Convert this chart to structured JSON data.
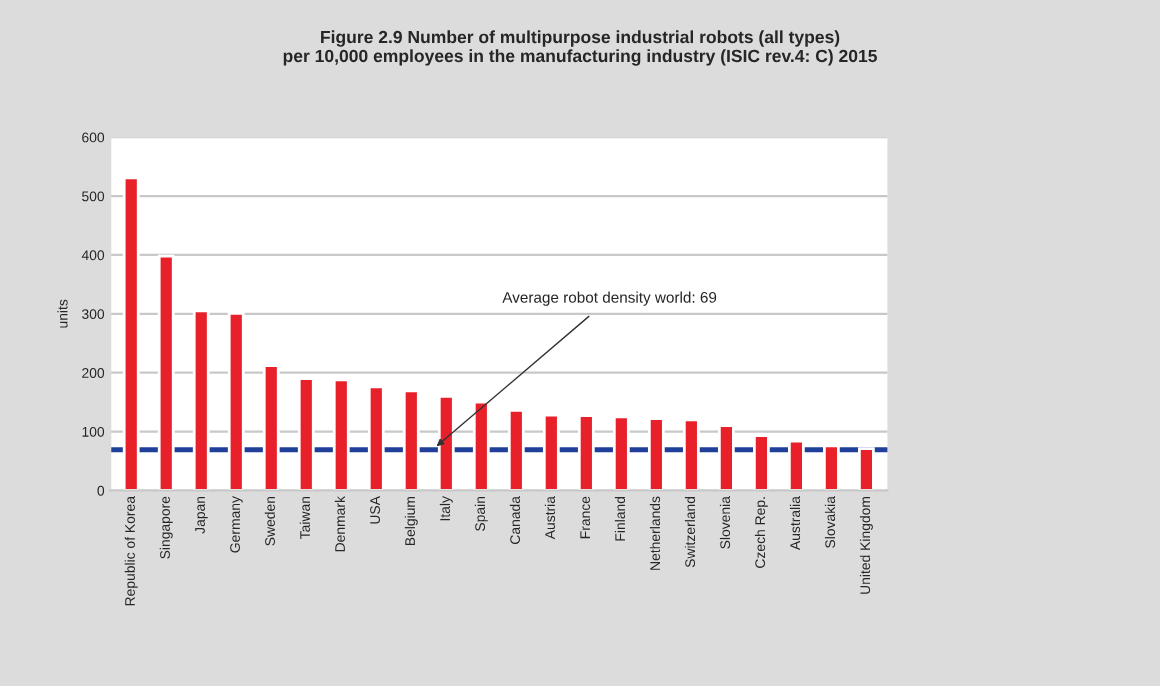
{
  "chart_data": {
    "type": "bar",
    "title": "Figure 2.9 Number of multipurpose industrial robots (all types)\nper 10,000 employees in the manufacturing industry (ISIC rev.4: C) 2015",
    "ylabel": "units",
    "categories": [
      "Republic of Korea",
      "Singapore",
      "Japan",
      "Germany",
      "Sweden",
      "Taiwan",
      "Denmark",
      "USA",
      "Belgium",
      "Italy",
      "Spain",
      "Canada",
      "Austria",
      "France",
      "Finland",
      "Netherlands",
      "Switzerland",
      "Slovenia",
      "Czech Rep.",
      "Australia",
      "Slovakia",
      "United Kingdom"
    ],
    "values": [
      531,
      398,
      305,
      301,
      212,
      190,
      188,
      176,
      169,
      160,
      150,
      136,
      128,
      127,
      125,
      122,
      120,
      110,
      93,
      84,
      76,
      71
    ],
    "color": "#e8202a",
    "ylim": [
      0,
      600
    ],
    "yticks": [
      0,
      100,
      200,
      300,
      400,
      500,
      600
    ],
    "grid": "y",
    "ref_lines": [
      {
        "axis": "y",
        "value": 69,
        "label": "Average robot density world: 69",
        "color": "#1f3f99"
      }
    ]
  }
}
